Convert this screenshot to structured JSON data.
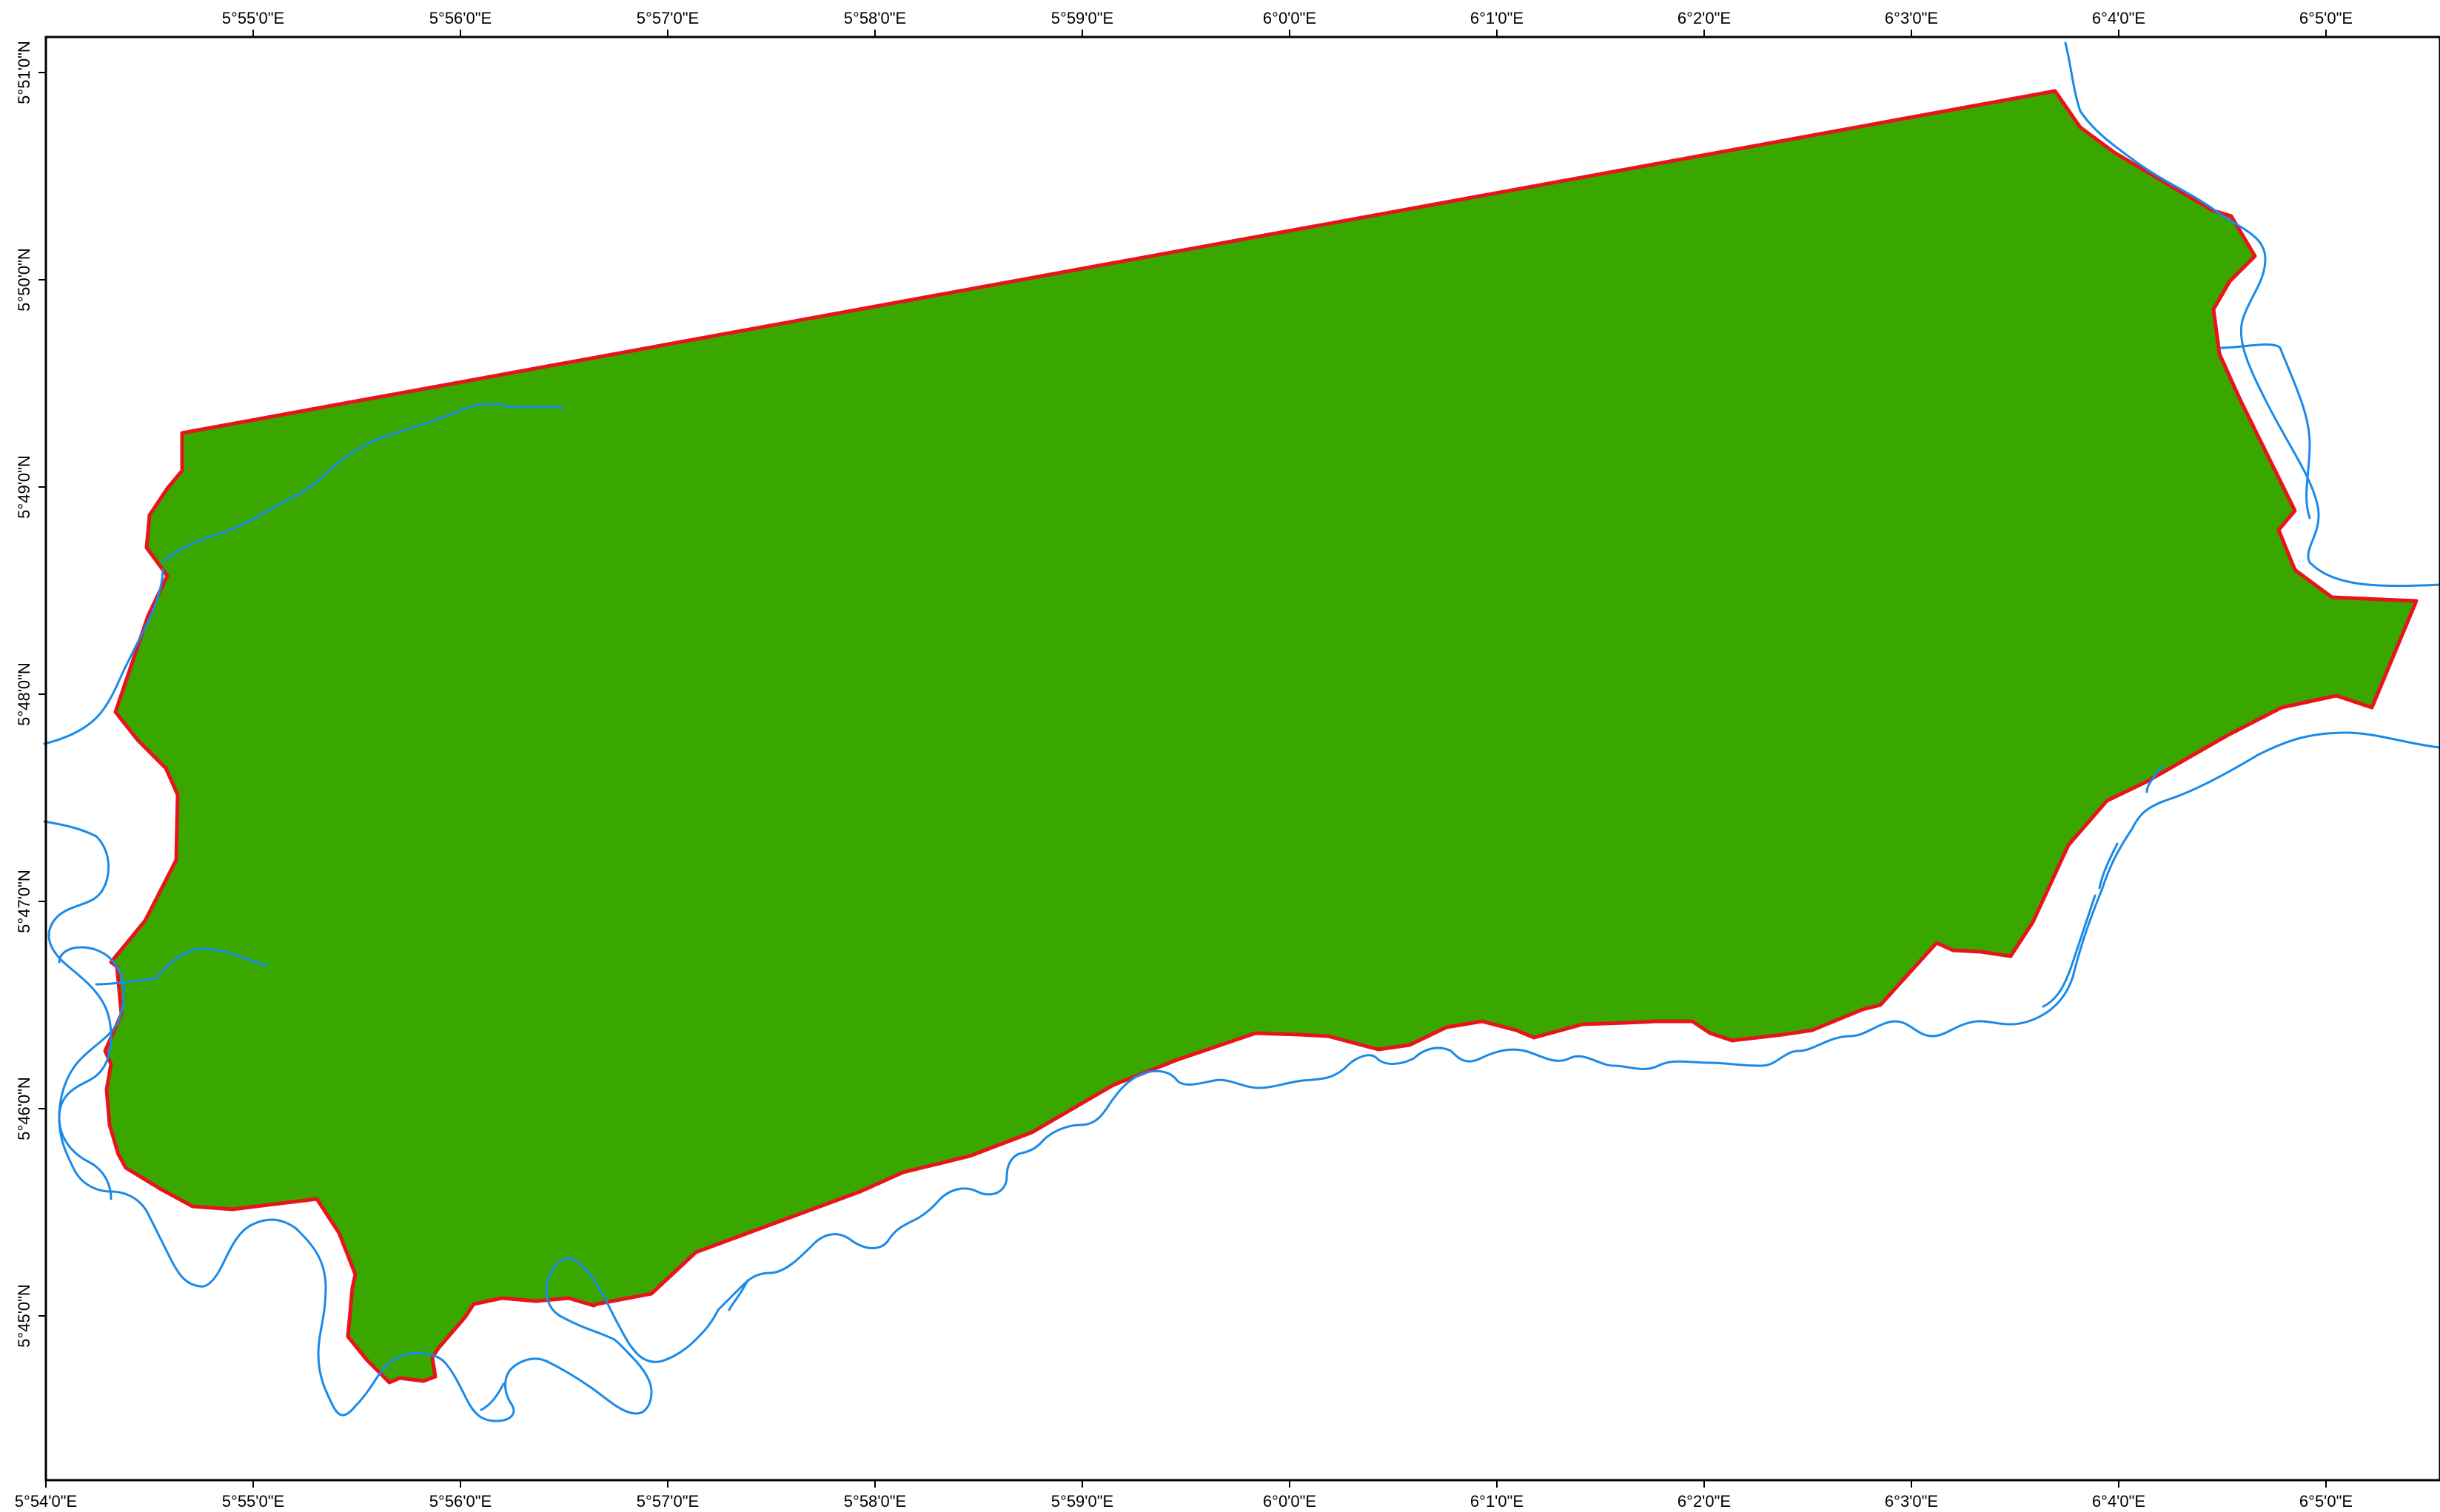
{
  "map": {
    "colors": {
      "land": "#3aa600",
      "boundary": "#e8141c",
      "river": "#1a8ae8",
      "frame": "#000000"
    },
    "longitude_labels_top": [
      "5°55'0\"E",
      "5°56'0\"E",
      "5°57'0\"E",
      "5°58'0\"E",
      "5°59'0\"E",
      "6°0'0\"E",
      "6°1'0\"E",
      "6°2'0\"E",
      "6°3'0\"E",
      "6°4'0\"E",
      "6°5'0\"E"
    ],
    "longitude_labels_bottom": [
      "5°54'0\"E",
      "5°55'0\"E",
      "5°56'0\"E",
      "5°57'0\"E",
      "5°58'0\"E",
      "5°59'0\"E",
      "6°0'0\"E",
      "6°1'0\"E",
      "6°2'0\"E",
      "6°3'0\"E",
      "6°4'0\"E",
      "6°5'0\"E"
    ],
    "latitude_labels": [
      "5°51'0\"N",
      "5°50'0\"N",
      "5°49'0\"N",
      "5°48'0\"N",
      "5°47'0\"N",
      "5°46'0\"N",
      "5°45'0\"N"
    ]
  }
}
